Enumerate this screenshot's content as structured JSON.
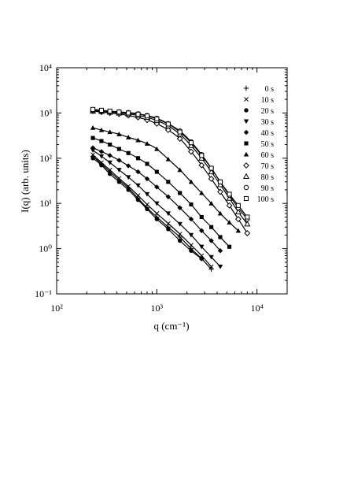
{
  "chart_data": {
    "type": "scatter",
    "title": "",
    "xlabel": "q (cm⁻¹)",
    "ylabel": "I(q)  (arb. units)",
    "xscale": "log",
    "yscale": "log",
    "xlim": [
      100,
      20000
    ],
    "ylim": [
      0.1,
      10000
    ],
    "x_tick_labels": [
      "10²",
      "10³",
      "10⁴"
    ],
    "y_tick_labels": [
      "10⁻¹",
      "10⁰",
      "10¹",
      "10²",
      "10³",
      "10⁴"
    ],
    "grid": false,
    "legend_position": "top-right",
    "series": [
      {
        "name": "0 s",
        "marker": "plus",
        "x": [
          230,
          280,
          340,
          420,
          520,
          650,
          800,
          1000,
          1300,
          1700,
          2200,
          2800,
          3500
        ],
        "y": [
          110,
          75,
          50,
          33,
          22,
          13,
          8,
          5,
          3,
          1.8,
          1.0,
          0.6,
          0.35
        ]
      },
      {
        "name": "10 s",
        "marker": "cross",
        "x": [
          230,
          280,
          340,
          420,
          520,
          650,
          800,
          1000,
          1300,
          1700,
          2200,
          2800,
          3500
        ],
        "y": [
          120,
          80,
          55,
          36,
          24,
          15,
          9.5,
          6,
          3.6,
          2.1,
          1.2,
          0.7,
          0.4
        ]
      },
      {
        "name": "20 s",
        "marker": "circle-filled",
        "x": [
          230,
          280,
          340,
          420,
          520,
          650,
          800,
          1000,
          1300,
          1700,
          2200,
          2800
        ],
        "y": [
          100,
          70,
          45,
          30,
          20,
          12,
          7.5,
          4.5,
          2.7,
          1.5,
          0.9,
          0.6
        ]
      },
      {
        "name": "30 s",
        "marker": "tri-down",
        "x": [
          230,
          280,
          340,
          420,
          520,
          650,
          800,
          1000,
          1300,
          1700,
          2200,
          2800,
          3500,
          4300
        ],
        "y": [
          150,
          110,
          80,
          55,
          38,
          25,
          16,
          10,
          6,
          3.5,
          2,
          1.1,
          0.65,
          0.4
        ]
      },
      {
        "name": "40 s",
        "marker": "diamond-filled",
        "x": [
          230,
          280,
          340,
          420,
          520,
          650,
          800,
          1000,
          1300,
          1700,
          2200,
          2800,
          3500,
          4300
        ],
        "y": [
          170,
          140,
          115,
          90,
          68,
          50,
          35,
          23,
          14,
          8,
          4.5,
          2.5,
          1.5,
          0.9
        ]
      },
      {
        "name": "50 s",
        "marker": "square-filled",
        "x": [
          230,
          280,
          340,
          420,
          520,
          650,
          800,
          1000,
          1300,
          1700,
          2200,
          2800,
          3500,
          4300,
          5300
        ],
        "y": [
          280,
          240,
          200,
          160,
          130,
          100,
          75,
          50,
          30,
          17,
          9.5,
          5,
          3,
          1.8,
          1.1
        ]
      },
      {
        "name": "60 s",
        "marker": "tri-up-filled",
        "x": [
          230,
          280,
          340,
          420,
          520,
          650,
          800,
          1000,
          1300,
          1700,
          2200,
          2800,
          3500,
          4300,
          5300,
          6500
        ],
        "y": [
          470,
          420,
          380,
          340,
          290,
          250,
          210,
          160,
          95,
          55,
          30,
          17,
          10,
          6,
          3.8,
          2.5
        ]
      },
      {
        "name": "70 s",
        "marker": "diamond-open",
        "x": [
          230,
          280,
          340,
          420,
          520,
          650,
          800,
          1000,
          1300,
          1700,
          2200,
          2800,
          3500,
          4300,
          5300,
          6500,
          8000
        ],
        "y": [
          1100,
          1050,
          1000,
          950,
          880,
          800,
          700,
          580,
          420,
          270,
          140,
          70,
          35,
          18,
          9,
          4.5,
          2.2
        ]
      },
      {
        "name": "80 s",
        "marker": "tri-up-open",
        "x": [
          230,
          280,
          340,
          420,
          520,
          650,
          800,
          1000,
          1300,
          1700,
          2200,
          2800,
          3500,
          4300,
          5300,
          6500,
          8000
        ],
        "y": [
          1100,
          1080,
          1040,
          1000,
          950,
          880,
          800,
          680,
          520,
          340,
          190,
          100,
          50,
          26,
          13,
          6.5,
          3.5
        ]
      },
      {
        "name": "90 s",
        "marker": "circle-open",
        "x": [
          230,
          280,
          340,
          420,
          520,
          650,
          800,
          1000,
          1300,
          1700,
          2200,
          2800,
          3500,
          4300,
          5300,
          6500,
          8000
        ],
        "y": [
          1150,
          1120,
          1090,
          1060,
          1020,
          960,
          880,
          760,
          580,
          400,
          230,
          120,
          60,
          30,
          15,
          8,
          4.5
        ]
      },
      {
        "name": "100 s",
        "marker": "square-open",
        "x": [
          230,
          280,
          340,
          420,
          520,
          650,
          800,
          1000,
          1300,
          1700,
          2200,
          2800,
          3500,
          4300,
          5300,
          6500,
          8000
        ],
        "y": [
          1200,
          1150,
          1100,
          1050,
          1000,
          940,
          860,
          740,
          570,
          380,
          220,
          115,
          60,
          30,
          16,
          9,
          5
        ]
      }
    ]
  }
}
